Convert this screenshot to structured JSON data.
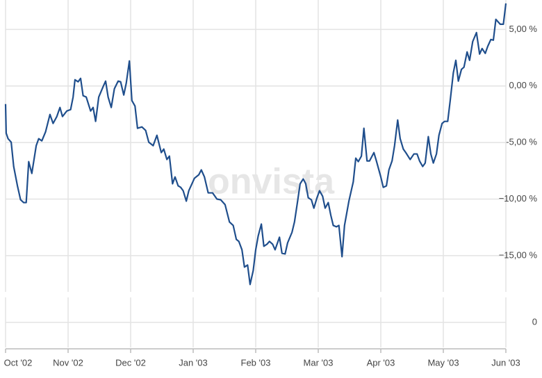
{
  "chart_data": [
    {
      "type": "line",
      "watermark": "onvista",
      "xlim": [
        0,
        8
      ],
      "xticks": [
        {
          "value": 0,
          "label": "Oct '02"
        },
        {
          "value": 1,
          "label": "Nov '02"
        },
        {
          "value": 2,
          "label": "Dec '02"
        },
        {
          "value": 3,
          "label": "Jan '03"
        },
        {
          "value": 4,
          "label": "Feb '03"
        },
        {
          "value": 5,
          "label": "Mar '03"
        },
        {
          "value": 6,
          "label": "Apr '03"
        },
        {
          "value": 7,
          "label": "May '03"
        },
        {
          "value": 8,
          "label": "Jun '03"
        }
      ],
      "ylim": [
        -18.2,
        7.6
      ],
      "yticks": [
        {
          "value": -15,
          "label": "−15,00 %"
        },
        {
          "value": -10,
          "label": "−10,00 %"
        },
        {
          "value": -5,
          "label": "-5,00 %"
        },
        {
          "value": 0,
          "label": "0,00 %"
        },
        {
          "value": 5,
          "label": "5,00 %"
        }
      ],
      "grid": true,
      "x": [
        0,
        0.01,
        0.04,
        0.09,
        0.13,
        0.19,
        0.24,
        0.29,
        0.33,
        0.37,
        0.42,
        0.49,
        0.53,
        0.58,
        0.64,
        0.71,
        0.76,
        0.82,
        0.87,
        0.91,
        0.98,
        1.04,
        1.08,
        1.11,
        1.16,
        1.2,
        1.24,
        1.29,
        1.36,
        1.4,
        1.44,
        1.49,
        1.56,
        1.6,
        1.64,
        1.69,
        1.74,
        1.8,
        1.84,
        1.89,
        1.93,
        1.98,
        2.02,
        2.07,
        2.11,
        2.18,
        2.24,
        2.29,
        2.36,
        2.42,
        2.49,
        2.53,
        2.58,
        2.62,
        2.67,
        2.71,
        2.76,
        2.8,
        2.84,
        2.89,
        2.93,
        2.98,
        3.02,
        3.09,
        3.13,
        3.18,
        3.24,
        3.31,
        3.38,
        3.44,
        3.51,
        3.58,
        3.64,
        3.69,
        3.73,
        3.78,
        3.82,
        3.87,
        3.91,
        3.96,
        4,
        4.04,
        4.09,
        4.13,
        4.18,
        4.22,
        4.27,
        4.31,
        4.38,
        4.42,
        4.47,
        4.51,
        4.58,
        4.62,
        4.67,
        4.71,
        4.76,
        4.8,
        4.84,
        4.89,
        4.93,
        4.98,
        5.02,
        5.07,
        5.11,
        5.16,
        5.2,
        5.24,
        5.29,
        5.33,
        5.38,
        5.42,
        5.49,
        5.56,
        5.6,
        5.64,
        5.69,
        5.73,
        5.78,
        5.82,
        5.89,
        5.93,
        6,
        6.04,
        6.09,
        6.13,
        6.18,
        6.22,
        6.27,
        6.31,
        6.36,
        6.4,
        6.47,
        6.53,
        6.58,
        6.62,
        6.67,
        6.71,
        6.76,
        6.8,
        6.84,
        6.89,
        6.93,
        6.98,
        7.02,
        7.07,
        7.11,
        7.16,
        7.2,
        7.24,
        7.29,
        7.33,
        7.38,
        7.42,
        7.47,
        7.53,
        7.58,
        7.62,
        7.67,
        7.71,
        7.76,
        7.8,
        7.84,
        7.91,
        7.96,
        8
      ],
      "series": [
        {
          "color": "#1f4e8c",
          "values": [
            -1.6,
            -4.17,
            -4.66,
            -4.97,
            -7.12,
            -8.83,
            -10.06,
            -10.31,
            -10.31,
            -6.69,
            -7.73,
            -5.28,
            -4.66,
            -4.85,
            -4.05,
            -2.52,
            -3.31,
            -2.7,
            -1.9,
            -2.7,
            -2.21,
            -2.09,
            -0.98,
            0.55,
            0.37,
            0.67,
            -0.86,
            -0.98,
            -2.21,
            -1.9,
            -3.13,
            -0.98,
            -0.06,
            0.43,
            -0.98,
            -1.9,
            -0.25,
            0.43,
            0.37,
            -0.8,
            0.25,
            2.21,
            -1.29,
            -1.78,
            -3.74,
            -3.62,
            -3.93,
            -4.97,
            -5.28,
            -4.36,
            -5.89,
            -5.58,
            -6.5,
            -6.2,
            -8.65,
            -8.04,
            -8.83,
            -8.96,
            -9.26,
            -10.18,
            -9.26,
            -8.65,
            -8.16,
            -7.85,
            -7.42,
            -8.04,
            -9.45,
            -9.45,
            -10,
            -10.06,
            -10.49,
            -12.02,
            -12.33,
            -13.56,
            -13.74,
            -14.48,
            -16.01,
            -15.83,
            -17.55,
            -16.32,
            -14.48,
            -13.25,
            -12.21,
            -14.17,
            -13.99,
            -13.74,
            -13.99,
            -14.48,
            -13.37,
            -14.79,
            -14.85,
            -13.87,
            -12.94,
            -12.02,
            -10.18,
            -8.65,
            -8.22,
            -8.65,
            -9.88,
            -10.06,
            -10.8,
            -9.88,
            -9.26,
            -9.75,
            -10.8,
            -10.31,
            -11.41,
            -12.33,
            -12.45,
            -12.33,
            -15.09,
            -12.33,
            -10.18,
            -8.47,
            -6.38,
            -6.69,
            -6.2,
            -3.74,
            -6.63,
            -6.63,
            -5.89,
            -6.63,
            -8.04,
            -8.96,
            -8.83,
            -7.42,
            -6.63,
            -5.28,
            -3.01,
            -4.66,
            -5.58,
            -5.89,
            -6.5,
            -6.01,
            -6.01,
            -6.63,
            -7.12,
            -6.81,
            -4.48,
            -6.01,
            -6.81,
            -6.01,
            -4.36,
            -3.31,
            -3.13,
            -3.13,
            -1.29,
            1.17,
            2.27,
            0.43,
            1.47,
            1.66,
            3.01,
            2.27,
            3.93,
            4.72,
            2.82,
            3.31,
            2.88,
            3.5,
            4.11,
            4.05,
            5.89,
            5.46,
            5.46,
            7.3
          ]
        }
      ]
    },
    {
      "type": "panel",
      "xlim": [
        0,
        8
      ],
      "ylim": [
        -1,
        1
      ],
      "yticks": [
        0
      ],
      "grid": true
    }
  ]
}
